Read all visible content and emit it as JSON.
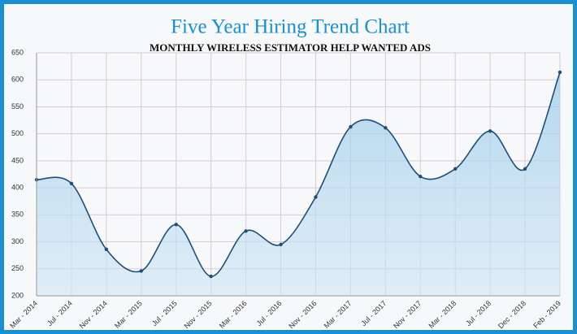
{
  "chart_data": {
    "type": "line",
    "title": "Five Year Hiring Trend Chart",
    "subtitle": "MONTHLY WIRELESS ESTIMATOR HELP WANTED ADS",
    "categories": [
      "Mar - 2014",
      "Jul - 2014",
      "Nov - 2014",
      "Mar - 2015",
      "Jul - 2015",
      "Nov - 2015",
      "Mar - 2016",
      "Jul - 2016",
      "Nov - 2016",
      "Mar - 2017",
      "Jul - 2017",
      "Nov - 2017",
      "Mar - 2018",
      "Jul - 2018",
      "Dec - 2018",
      "Feb - 2019"
    ],
    "values": [
      415,
      408,
      286,
      246,
      332,
      236,
      320,
      295,
      383,
      513,
      511,
      421,
      435,
      505,
      435,
      614
    ],
    "color": "#1f4e79",
    "ylim": [
      200,
      650
    ],
    "yticks": [
      200,
      250,
      300,
      350,
      400,
      450,
      500,
      550,
      600,
      650
    ],
    "grid": true
  }
}
